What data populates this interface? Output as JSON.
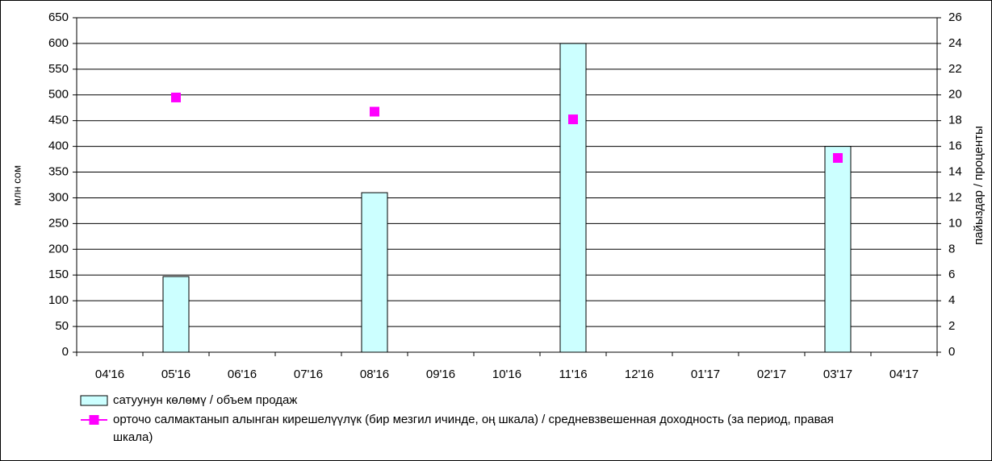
{
  "chart_data": {
    "type": "bar",
    "categories": [
      "04'16",
      "05'16",
      "06'16",
      "07'16",
      "08'16",
      "09'16",
      "10'16",
      "11'16",
      "12'16",
      "01'17",
      "02'17",
      "03'17",
      "04'17"
    ],
    "series": [
      {
        "name": "сатуунун көлөмү /  объем продаж",
        "type": "bar",
        "color": "#ccffff",
        "values": [
          null,
          147,
          null,
          null,
          310,
          null,
          null,
          600,
          null,
          null,
          null,
          400,
          null
        ]
      },
      {
        "name": "орточо салмактанып алынган кирешелүүлүк (бир мезгил ичинде, оң шкала) / средневзвешенная доходность (за период, правая шкала)",
        "type": "scatter",
        "color": "#ff00ff",
        "axis": "y2",
        "values": [
          null,
          19.8,
          null,
          null,
          18.7,
          null,
          null,
          18.1,
          null,
          null,
          null,
          15.1,
          null
        ]
      }
    ],
    "ylabel": "млн сом",
    "y2label": "пайыздар / проценты",
    "ylim": [
      0,
      650
    ],
    "yticks": [
      0,
      50,
      100,
      150,
      200,
      250,
      300,
      350,
      400,
      450,
      500,
      550,
      600,
      650
    ],
    "y2lim": [
      0,
      26
    ],
    "y2ticks": [
      0,
      2,
      4,
      6,
      8,
      10,
      12,
      14,
      16,
      18,
      20,
      22,
      24,
      26
    ],
    "grid": true,
    "legend": "bottom"
  }
}
